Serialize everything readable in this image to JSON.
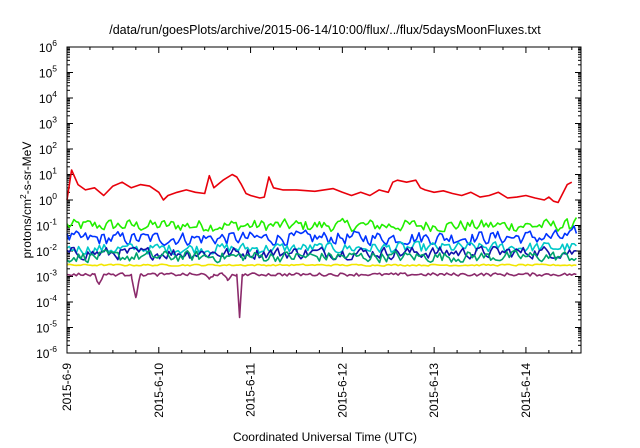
{
  "chart_data": {
    "type": "line",
    "title": "/data/run/goesPlots/archive/2015-06-14/10:00/flux/../flux/5daysMoonFluxes.txt",
    "xlabel": "Coordinated Universal Time (UTC)",
    "ylabel": {
      "pre": "protons/cm",
      "sup": "2",
      "post": "-s-sr-MeV"
    },
    "yscale": "log",
    "ylim_exp": [
      -6,
      6
    ],
    "y_ticks": [
      {
        "base": "10",
        "exp": "6"
      },
      {
        "base": "10",
        "exp": "5"
      },
      {
        "base": "10",
        "exp": "4"
      },
      {
        "base": "10",
        "exp": "3"
      },
      {
        "base": "10",
        "exp": "2"
      },
      {
        "base": "10",
        "exp": "1"
      },
      {
        "base": "10",
        "exp": "0"
      },
      {
        "base": "10",
        "exp": "-1"
      },
      {
        "base": "10",
        "exp": "-2"
      },
      {
        "base": "10",
        "exp": "-3"
      },
      {
        "base": "10",
        "exp": "-4"
      },
      {
        "base": "10",
        "exp": "-5"
      },
      {
        "base": "10",
        "exp": "-6"
      }
    ],
    "x_days_range": [
      0,
      5.6
    ],
    "x_ticks": [
      "2015-6-9",
      "2015-6-10",
      "2015-6-11",
      "2015-6-12",
      "2015-6-13",
      "2015-6-14"
    ],
    "grid": false,
    "legend": "none",
    "series": [
      {
        "color": "#e8000b",
        "points": [
          [
            0.0,
            1.0
          ],
          [
            0.05,
            15
          ],
          [
            0.12,
            4
          ],
          [
            0.2,
            2.5
          ],
          [
            0.3,
            3
          ],
          [
            0.4,
            1.5
          ],
          [
            0.5,
            3.5
          ],
          [
            0.6,
            5
          ],
          [
            0.7,
            3
          ],
          [
            0.8,
            4
          ],
          [
            0.9,
            3.5
          ],
          [
            1.0,
            2
          ],
          [
            1.05,
            1.0
          ],
          [
            1.1,
            1.5
          ],
          [
            1.2,
            2
          ],
          [
            1.3,
            2.5
          ],
          [
            1.4,
            2
          ],
          [
            1.5,
            1.8
          ],
          [
            1.55,
            9
          ],
          [
            1.6,
            3
          ],
          [
            1.7,
            6
          ],
          [
            1.8,
            10
          ],
          [
            1.85,
            8
          ],
          [
            1.9,
            4
          ],
          [
            1.95,
            1.8
          ],
          [
            2.0,
            1.5
          ],
          [
            2.1,
            1.2
          ],
          [
            2.15,
            1.3
          ],
          [
            2.2,
            8
          ],
          [
            2.25,
            3
          ],
          [
            2.35,
            2.5
          ],
          [
            2.5,
            2.5
          ],
          [
            2.7,
            2.2
          ],
          [
            2.9,
            2.8
          ],
          [
            3.0,
            2.0
          ],
          [
            3.1,
            1.5
          ],
          [
            3.2,
            2.0
          ],
          [
            3.3,
            1.5
          ],
          [
            3.4,
            2.5
          ],
          [
            3.5,
            2.0
          ],
          [
            3.55,
            5
          ],
          [
            3.6,
            6
          ],
          [
            3.7,
            5
          ],
          [
            3.8,
            6
          ],
          [
            3.85,
            3
          ],
          [
            3.9,
            2.5
          ],
          [
            4.0,
            2.0
          ],
          [
            4.1,
            2.3
          ],
          [
            4.2,
            1.8
          ],
          [
            4.3,
            1.5
          ],
          [
            4.4,
            2.0
          ],
          [
            4.5,
            1.3
          ],
          [
            4.6,
            1.5
          ],
          [
            4.7,
            2.0
          ],
          [
            4.8,
            1.2
          ],
          [
            4.9,
            1.3
          ],
          [
            5.0,
            1.5
          ],
          [
            5.1,
            1.2
          ],
          [
            5.2,
            1.0
          ],
          [
            5.25,
            1.3
          ],
          [
            5.3,
            0.9
          ],
          [
            5.35,
            0.8
          ],
          [
            5.45,
            4
          ],
          [
            5.5,
            5
          ]
        ]
      },
      {
        "color": "#22ee00",
        "amp": 0.22,
        "points": [
          [
            0.0,
            0.1
          ],
          [
            5.5,
            0.1
          ],
          [
            5.55,
            0.3
          ]
        ]
      },
      {
        "color": "#0033ff",
        "amp": 0.25,
        "points": [
          [
            0.0,
            0.03
          ],
          [
            5.5,
            0.035
          ],
          [
            5.55,
            0.06
          ]
        ]
      },
      {
        "color": "#00c8c8",
        "amp": 0.2,
        "points": [
          [
            0.0,
            0.012
          ],
          [
            5.55,
            0.014
          ]
        ]
      },
      {
        "color": "#1010aa",
        "amp": 0.22,
        "points": [
          [
            0.0,
            0.008
          ],
          [
            5.55,
            0.009
          ]
        ]
      },
      {
        "color": "#00a36c",
        "amp": 0.2,
        "points": [
          [
            0.0,
            0.006
          ],
          [
            5.55,
            0.006
          ]
        ]
      },
      {
        "color": "#f2e600",
        "amp": 0.03,
        "points": [
          [
            0.0,
            0.0028
          ],
          [
            5.55,
            0.0028
          ]
        ]
      },
      {
        "color": "#8b2a6b",
        "amp": 0.06,
        "points": [
          [
            0.0,
            0.0012
          ],
          [
            0.3,
            0.0012
          ],
          [
            0.35,
            0.0005
          ],
          [
            0.4,
            0.0012
          ],
          [
            0.7,
            0.0012
          ],
          [
            0.75,
            0.00015
          ],
          [
            0.8,
            0.0012
          ],
          [
            1.5,
            0.0012
          ],
          [
            1.55,
            0.0008
          ],
          [
            1.6,
            0.0012
          ],
          [
            1.7,
            0.0012
          ],
          [
            1.75,
            0.0007
          ],
          [
            1.8,
            0.0012
          ],
          [
            1.85,
            0.0012
          ],
          [
            1.88,
            2.5e-05
          ],
          [
            1.91,
            0.0012
          ],
          [
            5.55,
            0.0012
          ]
        ]
      }
    ]
  }
}
